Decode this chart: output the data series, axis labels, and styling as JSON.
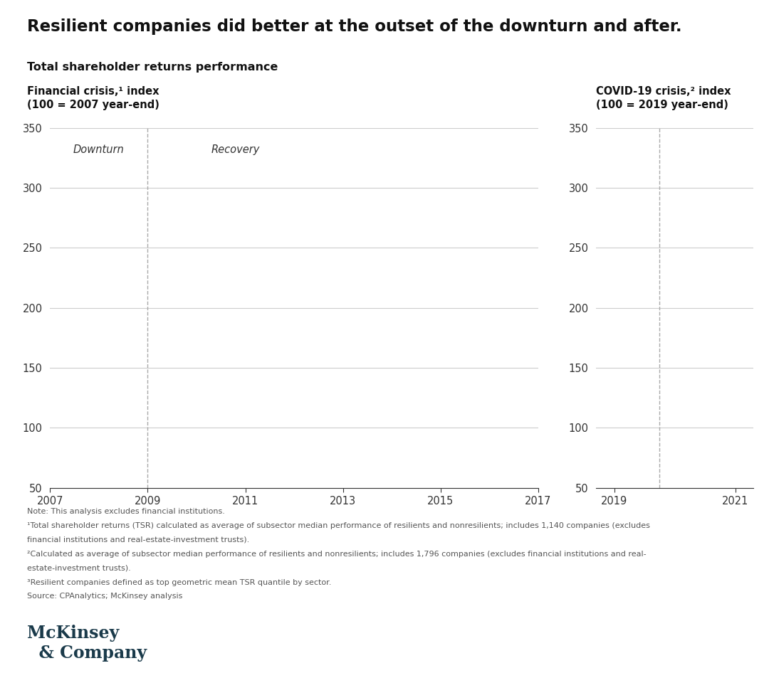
{
  "title": "Resilient companies did better at the outset of the downturn and after.",
  "subtitle": "Total shareholder returns performance",
  "left_label_line1": "Financial crisis,¹ index",
  "left_label_line2": "(100 = 2007 year-end)",
  "right_label_line1": "COVID-19 crisis,² index",
  "right_label_line2": "(100 = 2019 year-end)",
  "left_xlim": [
    2007,
    2017
  ],
  "right_xlim": [
    2018.7,
    2021.3
  ],
  "ylim": [
    50,
    350
  ],
  "yticks": [
    50,
    100,
    150,
    200,
    250,
    300,
    350
  ],
  "left_xticks": [
    2007,
    2009,
    2011,
    2013,
    2015,
    2017
  ],
  "right_xticks": [
    2019,
    2021
  ],
  "left_vline": 2009,
  "right_vline": 2019.75,
  "downturn_label": "Downturn",
  "recovery_label": "Recovery",
  "footnote_lines": [
    "Note: This analysis excludes financial institutions.",
    "¹Total shareholder returns (TSR) calculated as average of subsector median performance of resilients and nonresilients; includes 1,140 companies (excludes",
    "financial institutions and real-estate-investment trusts).",
    "²Calculated as average of subsector median performance of resilients and nonresilients; includes 1,796 companies (excludes financial institutions and real-",
    "estate-investment trusts).",
    "³Resilient companies defined as top geometric mean TSR quantile by sector.",
    "Source: CPAnalytics; McKinsey analysis"
  ],
  "mckinsey_line1": "McKinsey",
  "mckinsey_line2": "  & Company",
  "background_color": "#ffffff",
  "grid_color": "#cccccc",
  "vline_color": "#aaaaaa",
  "axis_color": "#333333",
  "footnote_color": "#555555",
  "title_color": "#111111",
  "mckinsey_color": "#1a3a4a"
}
